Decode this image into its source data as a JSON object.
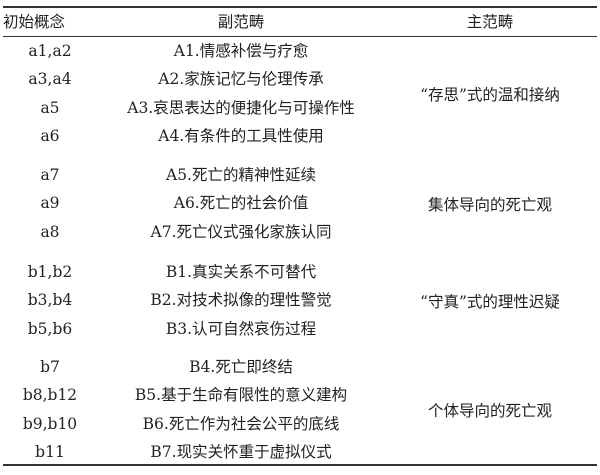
{
  "headers": {
    "initial": "初始概念",
    "sub": "副范畴",
    "main": "主范畴"
  },
  "groups": [
    {
      "main": "“存思”式的温和接纳",
      "rows": [
        {
          "initial": "a1,a2",
          "sub": "A1.情感补偿与疗愈"
        },
        {
          "initial": "a3,a4",
          "sub": "A2.家族记忆与伦理传承"
        },
        {
          "initial": "a5",
          "sub": "A3.哀思表达的便捷化与可操作性"
        },
        {
          "initial": "a6",
          "sub": "A4.有条件的工具性使用"
        }
      ]
    },
    {
      "main": "集体导向的死亡观",
      "rows": [
        {
          "initial": "a7",
          "sub": "A5.死亡的精神性延续"
        },
        {
          "initial": "a9",
          "sub": "A6.死亡的社会价值"
        },
        {
          "initial": "a8",
          "sub": "A7.死亡仪式强化家族认同"
        }
      ]
    },
    {
      "main": "“守真”式的理性迟疑",
      "rows": [
        {
          "initial": "b1,b2",
          "sub": "B1.真实关系不可替代"
        },
        {
          "initial": "b3,b4",
          "sub": "B2.对技术拟像的理性警觉"
        },
        {
          "initial": "b5,b6",
          "sub": "B3.认可自然哀伤过程"
        }
      ]
    },
    {
      "main": "个体导向的死亡观",
      "rows": [
        {
          "initial": "b7",
          "sub": "B4.死亡即终结"
        },
        {
          "initial": "b8,b12",
          "sub": "B5.基于生命有限性的意义建构"
        },
        {
          "initial": "b9,b10",
          "sub": "B6.死亡作为社会公平的底线"
        },
        {
          "initial": "b11",
          "sub": "B7.现实关怀重于虚拟仪式"
        }
      ]
    }
  ]
}
